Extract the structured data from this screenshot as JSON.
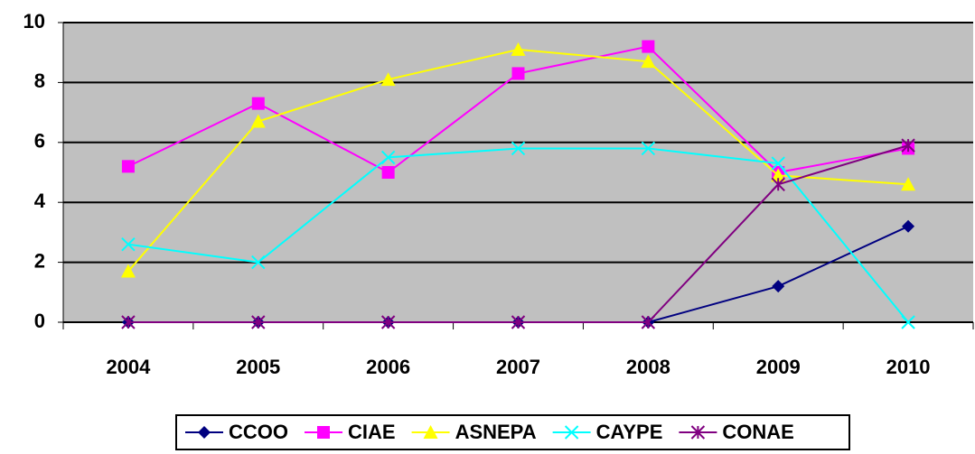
{
  "chart_data": {
    "type": "line",
    "categories": [
      "2004",
      "2005",
      "2006",
      "2007",
      "2008",
      "2009",
      "2010"
    ],
    "series": [
      {
        "name": "CCOO",
        "color": "#000080",
        "marker": "diamond",
        "values": [
          0,
          0,
          0,
          0,
          0,
          1.2,
          3.2
        ]
      },
      {
        "name": "CIAE",
        "color": "#ff00ff",
        "marker": "square",
        "values": [
          5.2,
          7.3,
          5.0,
          8.3,
          9.2,
          5.0,
          5.8
        ]
      },
      {
        "name": "ASNEPA",
        "color": "#ffff00",
        "marker": "triangle",
        "values": [
          1.7,
          6.7,
          8.1,
          9.1,
          8.7,
          4.9,
          4.6
        ]
      },
      {
        "name": "CAYPE",
        "color": "#00ffff",
        "marker": "x",
        "values": [
          2.6,
          2.0,
          5.5,
          5.8,
          5.8,
          5.3,
          0
        ]
      },
      {
        "name": "CONAE",
        "color": "#800080",
        "marker": "asterisk",
        "values": [
          0,
          0,
          0,
          0,
          0,
          4.6,
          5.9
        ]
      }
    ],
    "ylim": [
      0,
      10
    ],
    "yticks": [
      0,
      2,
      4,
      6,
      8,
      10
    ],
    "grid": true,
    "legend": "bottom"
  }
}
